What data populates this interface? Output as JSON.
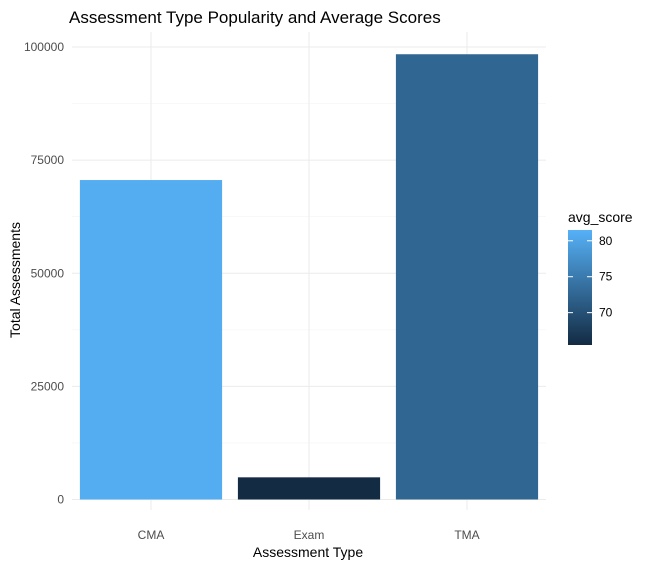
{
  "chart_data": {
    "type": "bar",
    "title": "Assessment Type Popularity and Average Scores",
    "xlabel": "Assessment Type",
    "ylabel": "Total Assessments",
    "categories": [
      "CMA",
      "Exam",
      "TMA"
    ],
    "values": [
      70600,
      4900,
      98400
    ],
    "fill_values": [
      81,
      65.5,
      72.5
    ],
    "ylim": [
      0,
      103000
    ],
    "yticks": [
      0,
      25000,
      50000,
      75000,
      100000
    ],
    "ytick_labels": [
      "0",
      "25000",
      "50000",
      "75000",
      "100000"
    ],
    "grid": true,
    "legend": {
      "title": "avg_score",
      "position": "right",
      "range": [
        65.5,
        81.5
      ],
      "ticks": [
        70,
        75,
        80
      ],
      "tick_labels": [
        "70",
        "75",
        "80"
      ],
      "low_color": "#132b43",
      "high_color": "#56b1f7"
    }
  }
}
